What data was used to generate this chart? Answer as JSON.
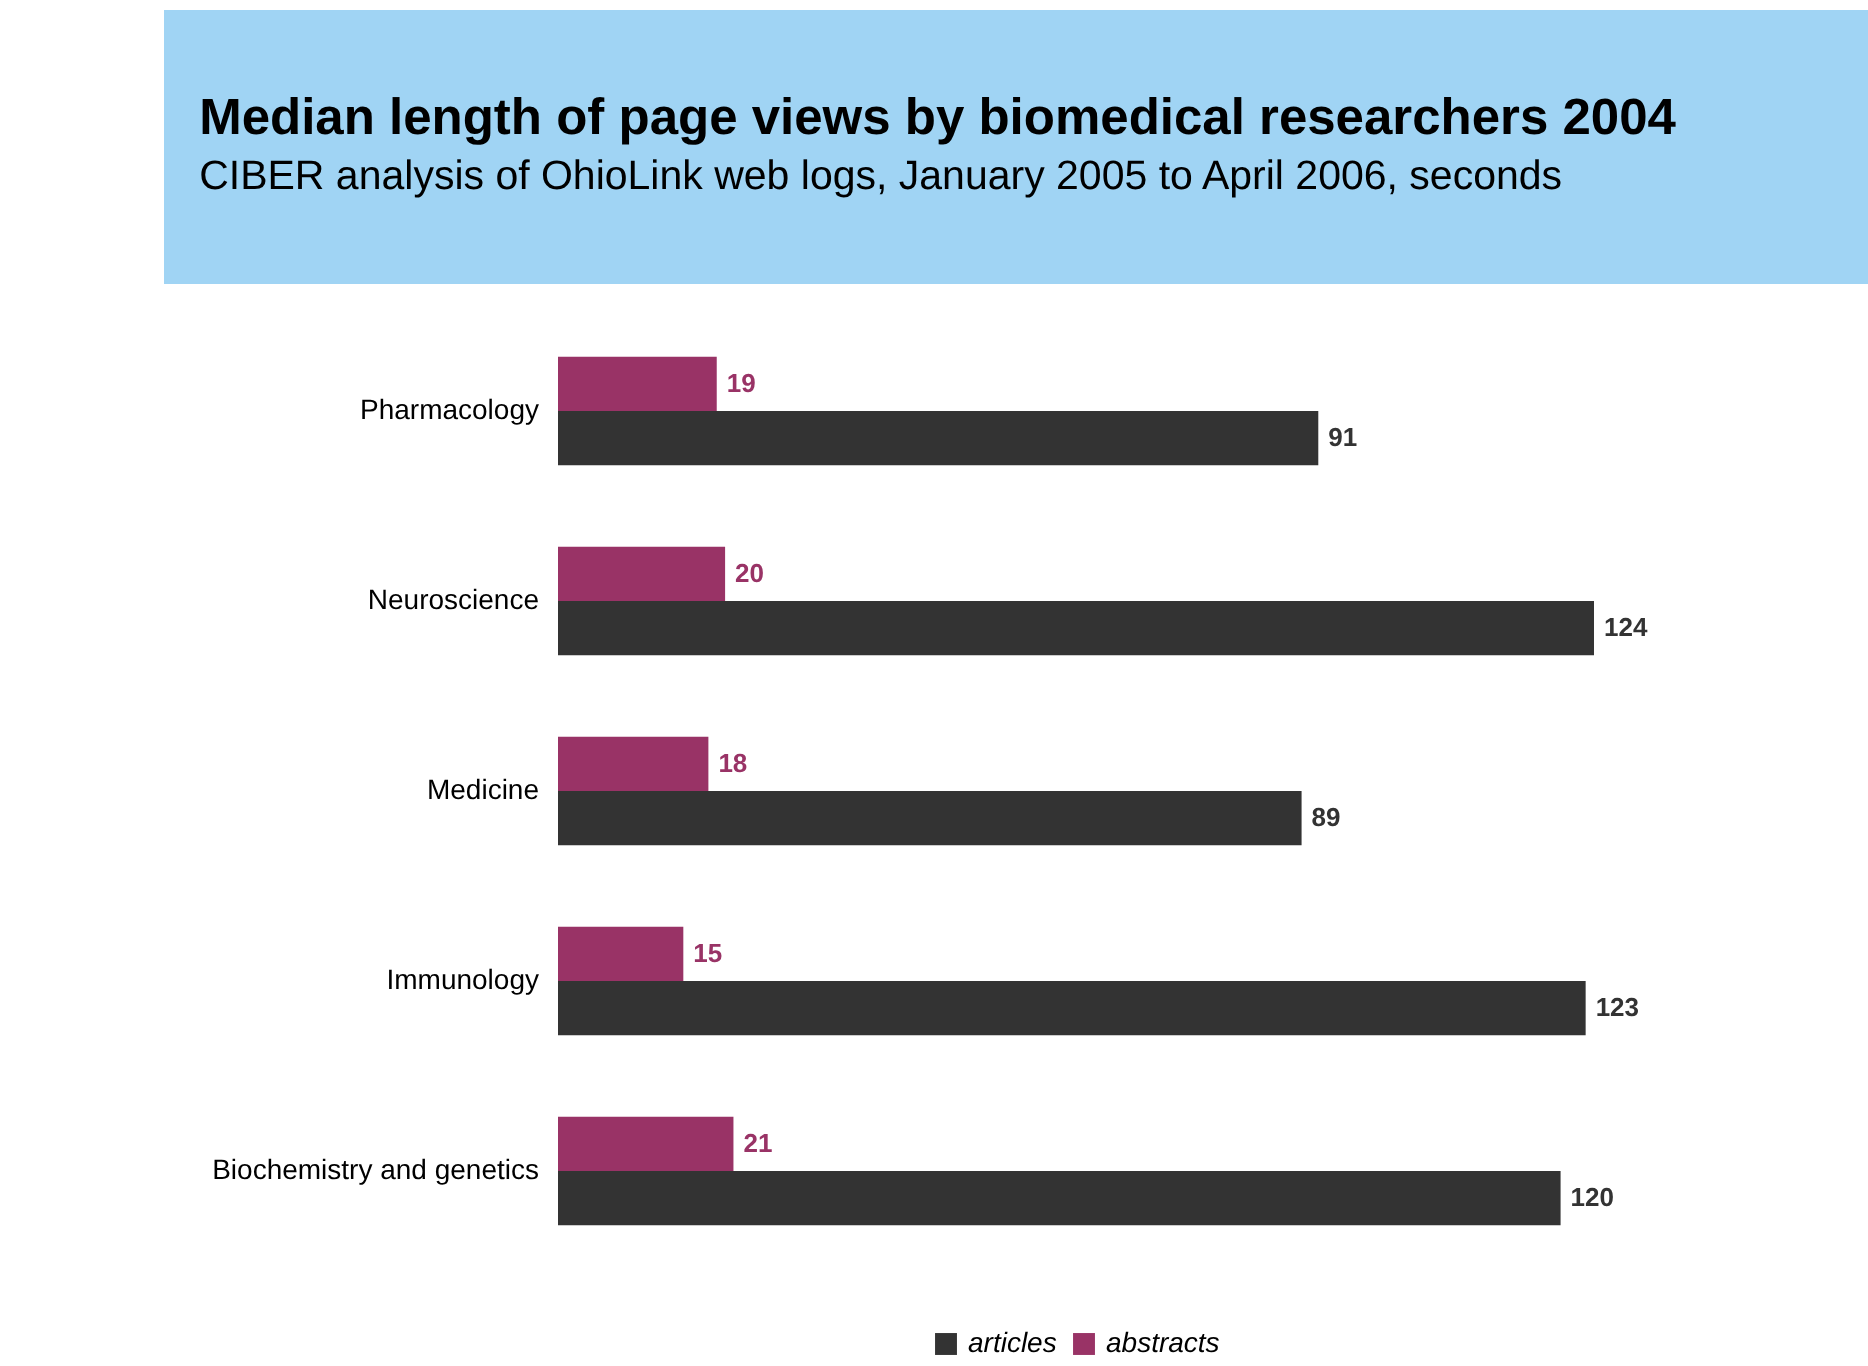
{
  "chart_data": {
    "type": "bar",
    "orientation": "horizontal",
    "title": "Median length of page views by biomedical researchers 2004",
    "subtitle": "CIBER analysis of OhioLink web logs, January 2005 to April 2006, seconds",
    "categories": [
      "Pharmacology",
      "Neuroscience",
      "Medicine",
      "Immunology",
      "Biochemistry and genetics"
    ],
    "series": [
      {
        "name": "articles",
        "color": "#333333",
        "values": [
          91,
          124,
          89,
          123,
          120
        ]
      },
      {
        "name": "abstracts",
        "color": "#993366",
        "values": [
          19,
          20,
          18,
          15,
          21
        ]
      }
    ],
    "data_labels": true,
    "legend": "bottom",
    "tick_labels": "y"
  }
}
